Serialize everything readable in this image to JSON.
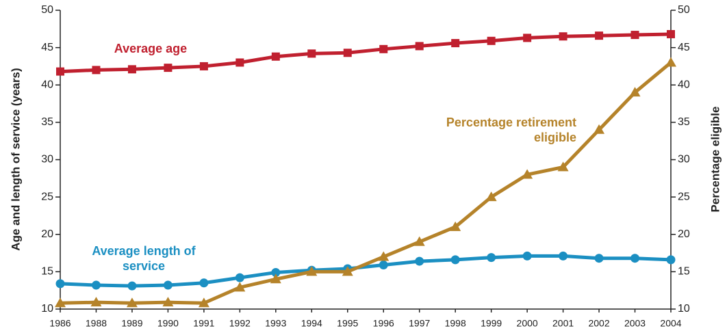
{
  "chart_data": {
    "type": "line",
    "categories": [
      "1986",
      "1988",
      "1989",
      "1990",
      "1991",
      "1992",
      "1993",
      "1994",
      "1995",
      "1996",
      "1997",
      "1998",
      "1999",
      "2000",
      "2001",
      "2002",
      "2003",
      "2004"
    ],
    "series": [
      {
        "name": "Average age",
        "color": "#c0202f",
        "marker": "square",
        "axis": "y",
        "values": [
          41.8,
          42.0,
          42.1,
          42.3,
          42.5,
          43.0,
          43.8,
          44.2,
          44.3,
          44.8,
          45.2,
          45.6,
          45.9,
          46.3,
          46.5,
          46.6,
          46.7,
          46.8
        ]
      },
      {
        "name": "Average length of service",
        "color": "#1b8fc2",
        "marker": "circle",
        "axis": "y",
        "values": [
          13.4,
          13.2,
          13.1,
          13.2,
          13.5,
          14.2,
          14.9,
          15.2,
          15.4,
          15.9,
          16.4,
          16.6,
          16.9,
          17.1,
          17.1,
          16.8,
          16.8,
          16.6
        ]
      },
      {
        "name": "Percentage retirement eligible",
        "color": "#b5832a",
        "marker": "triangle",
        "axis": "y2",
        "values": [
          10.8,
          10.9,
          10.8,
          10.9,
          10.8,
          12.9,
          14,
          15,
          15,
          17,
          19,
          21,
          25,
          28,
          29,
          34,
          39,
          43
        ]
      }
    ],
    "ylabel": "Age and length of service (years)",
    "y2label": "Percentage eligible",
    "ylim": [
      10,
      50
    ],
    "yticks": [
      10,
      15,
      20,
      25,
      30,
      35,
      40,
      45,
      50
    ],
    "y2lim": [
      10,
      50
    ],
    "y2ticks": [
      10,
      15,
      20,
      25,
      30,
      35,
      40,
      45,
      50
    ],
    "grid": false
  }
}
